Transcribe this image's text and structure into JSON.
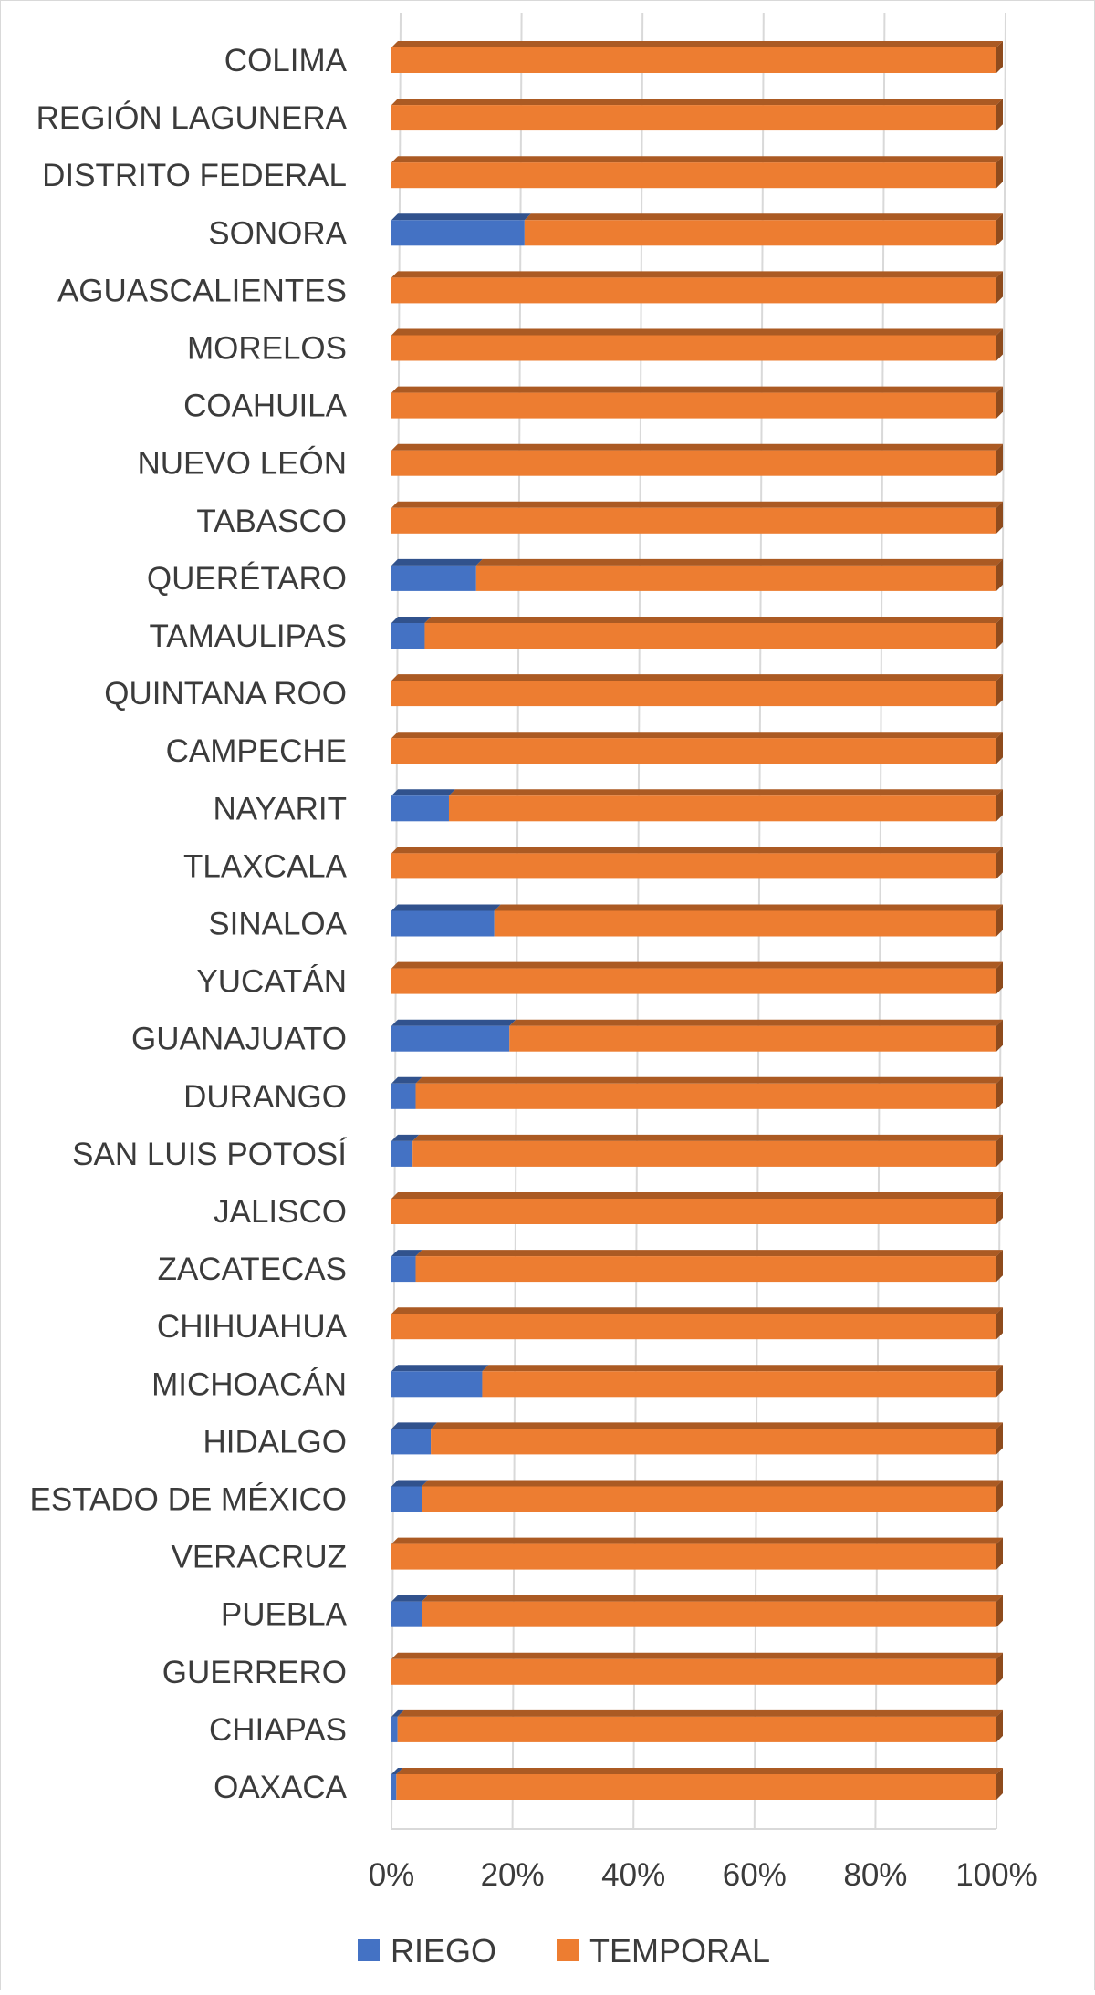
{
  "chart_data": {
    "type": "bar",
    "orientation": "horizontal",
    "stacked": "percent",
    "categories": [
      "COLIMA",
      "REGIÓN LAGUNERA",
      "DISTRITO FEDERAL",
      "SONORA",
      "AGUASCALIENTES",
      "MORELOS",
      "COAHUILA",
      "NUEVO LEÓN",
      "TABASCO",
      "QUERÉTARO",
      "TAMAULIPAS",
      "QUINTANA ROO",
      "CAMPECHE",
      "NAYARIT",
      "TLAXCALA",
      "SINALOA",
      "YUCATÁN",
      "GUANAJUATO",
      "DURANGO",
      "SAN LUIS POTOSÍ",
      "JALISCO",
      "ZACATECAS",
      "CHIHUAHUA",
      "MICHOACÁN",
      "HIDALGO",
      "ESTADO DE MÉXICO",
      "VERACRUZ",
      "PUEBLA",
      "GUERRERO",
      "CHIAPAS",
      "OAXACA"
    ],
    "series": [
      {
        "name": "RIEGO",
        "color": "#4472c4",
        "values": [
          0,
          0,
          0,
          22,
          0,
          0,
          0,
          0,
          0,
          14,
          5.5,
          0,
          0,
          9.5,
          0,
          17,
          0,
          19.5,
          4,
          3.5,
          0,
          4,
          0,
          15,
          6.5,
          5,
          0,
          5,
          0,
          1,
          0.8
        ]
      },
      {
        "name": "TEMPORAL",
        "color": "#ed7d31",
        "values": [
          100,
          100,
          100,
          78,
          100,
          100,
          100,
          100,
          100,
          86,
          94.5,
          100,
          100,
          90.5,
          100,
          83,
          100,
          80.5,
          96,
          96.5,
          100,
          96,
          100,
          85,
          93.5,
          95,
          100,
          95,
          100,
          99,
          99.2
        ]
      }
    ],
    "x_ticks": [
      "0%",
      "20%",
      "40%",
      "60%",
      "80%",
      "100%"
    ],
    "xlim": [
      0,
      100
    ],
    "grid": "vertical",
    "legend": "bottom",
    "title": "",
    "xlabel": "",
    "ylabel": ""
  }
}
